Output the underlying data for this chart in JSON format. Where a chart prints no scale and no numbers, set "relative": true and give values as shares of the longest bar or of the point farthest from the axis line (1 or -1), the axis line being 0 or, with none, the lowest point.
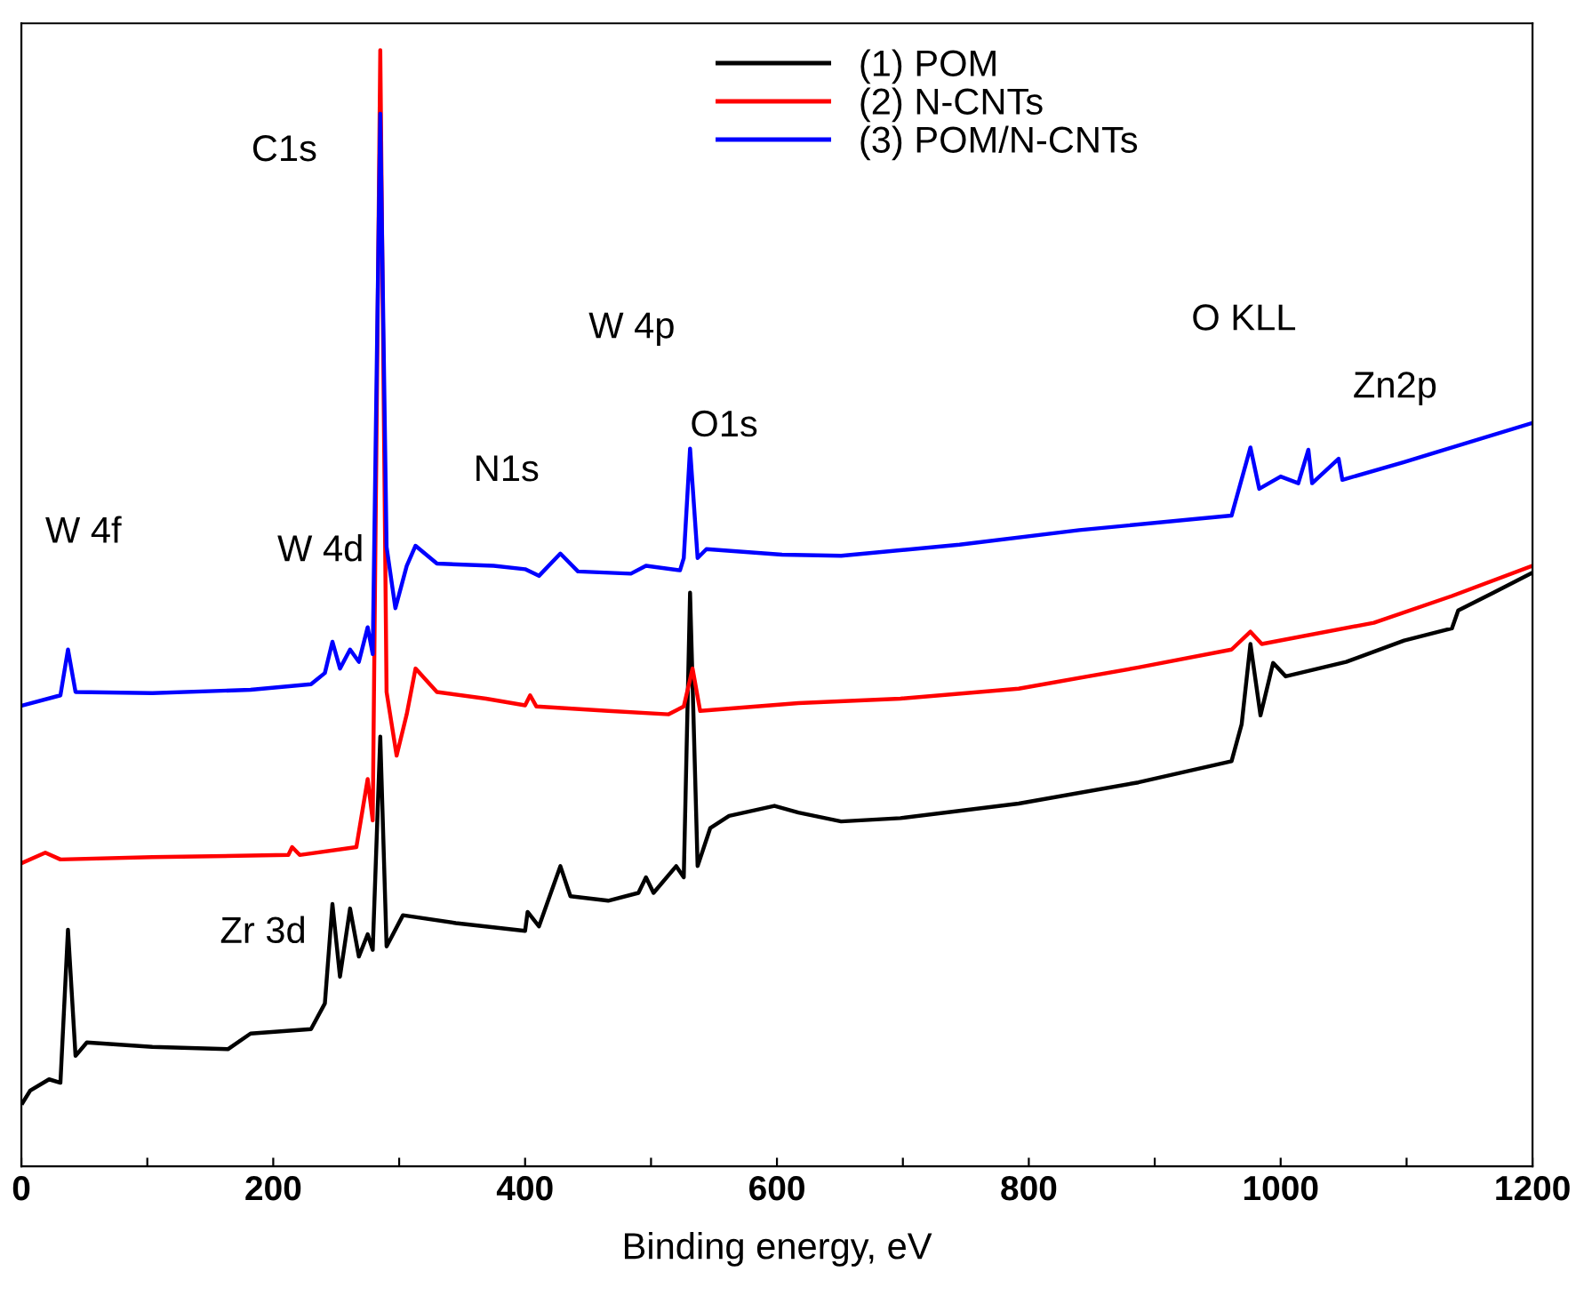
{
  "chart_data": {
    "type": "line",
    "relative": true,
    "xlabel": "Binding energy, eV",
    "xlim": [
      0,
      1200
    ],
    "xticks": [
      0,
      {
        "value": 100,
        "label": null
      },
      200,
      {
        "value": 300,
        "label": null
      },
      400,
      {
        "value": 500,
        "label": null
      },
      600,
      {
        "value": 700,
        "label": null
      },
      800,
      {
        "value": 900,
        "label": null
      },
      1000,
      {
        "value": 1100,
        "label": null
      },
      1200
    ],
    "tick_labels": "x",
    "grid": false,
    "legend": "top",
    "line_style": "solid",
    "marker": "none",
    "series": [
      {
        "name": "(1) POM",
        "color": "#000000",
        "x": [
          1,
          7,
          22,
          31,
          37,
          43,
          52,
          104,
          164,
          182,
          230,
          241,
          247,
          253,
          261,
          268,
          275,
          279,
          285,
          290,
          303,
          345,
          400,
          402,
          411,
          428,
          436,
          466,
          490,
          496,
          502,
          520,
          526,
          531,
          537,
          547,
          562,
          598,
          617,
          651,
          698,
          792,
          887,
          961,
          969,
          976,
          984,
          994,
          1004,
          1052,
          1098,
          1136,
          1141,
          1169,
          1200
        ],
        "values": [
          0.057,
          0.068,
          0.078,
          0.075,
          0.212,
          0.099,
          0.111,
          0.107,
          0.105,
          0.119,
          0.123,
          0.146,
          0.235,
          0.17,
          0.231,
          0.188,
          0.208,
          0.194,
          0.385,
          0.197,
          0.225,
          0.218,
          0.211,
          0.228,
          0.215,
          0.269,
          0.242,
          0.238,
          0.245,
          0.259,
          0.245,
          0.269,
          0.259,
          0.514,
          0.269,
          0.303,
          0.314,
          0.323,
          0.317,
          0.309,
          0.312,
          0.325,
          0.344,
          0.363,
          0.396,
          0.468,
          0.404,
          0.451,
          0.439,
          0.452,
          0.471,
          0.482,
          0.498,
          0.514,
          0.532
        ]
      },
      {
        "name": "(2) N-CNTs",
        "color": "#ff0000",
        "x": [
          1,
          19,
          31,
          104,
          212,
          215,
          221,
          266,
          275,
          279,
          285,
          290,
          298,
          306,
          313,
          330,
          369,
          400,
          404,
          409,
          466,
          514,
          526,
          533,
          539,
          617,
          698,
          792,
          887,
          961,
          976,
          985,
          1074,
          1136,
          1200
        ],
        "values": [
          0.272,
          0.281,
          0.275,
          0.277,
          0.279,
          0.286,
          0.279,
          0.286,
          0.347,
          0.31,
          1.0,
          0.425,
          0.368,
          0.405,
          0.446,
          0.425,
          0.419,
          0.413,
          0.422,
          0.412,
          0.408,
          0.405,
          0.412,
          0.446,
          0.408,
          0.415,
          0.419,
          0.428,
          0.447,
          0.463,
          0.479,
          0.468,
          0.487,
          0.511,
          0.538
        ]
      },
      {
        "name": "(3) POM/N-CNTs",
        "color": "#0000ff",
        "x": [
          1,
          31,
          37,
          43,
          104,
          182,
          230,
          241,
          247,
          253,
          261,
          268,
          275,
          279,
          285,
          290,
          297,
          306,
          313,
          330,
          375,
          400,
          411,
          428,
          442,
          484,
          496,
          523,
          526,
          531,
          537,
          544,
          604,
          651,
          745,
          840,
          933,
          961,
          976,
          983,
          1000,
          1014,
          1022,
          1025,
          1046,
          1049,
          1098,
          1200
        ],
        "values": [
          0.413,
          0.422,
          0.463,
          0.425,
          0.424,
          0.427,
          0.432,
          0.442,
          0.47,
          0.446,
          0.463,
          0.452,
          0.483,
          0.459,
          0.943,
          0.555,
          0.5,
          0.538,
          0.556,
          0.54,
          0.538,
          0.535,
          0.529,
          0.549,
          0.533,
          0.531,
          0.538,
          0.534,
          0.545,
          0.643,
          0.545,
          0.553,
          0.548,
          0.547,
          0.557,
          0.57,
          0.58,
          0.583,
          0.644,
          0.607,
          0.618,
          0.612,
          0.642,
          0.612,
          0.634,
          0.615,
          0.631,
          0.666
        ]
      }
    ],
    "annotations": [
      "W 4f",
      "W 4d",
      "C1s",
      "Zr 3d",
      "N1s",
      "W 4p",
      "O1s",
      "O KLL",
      "Zn2p"
    ]
  }
}
